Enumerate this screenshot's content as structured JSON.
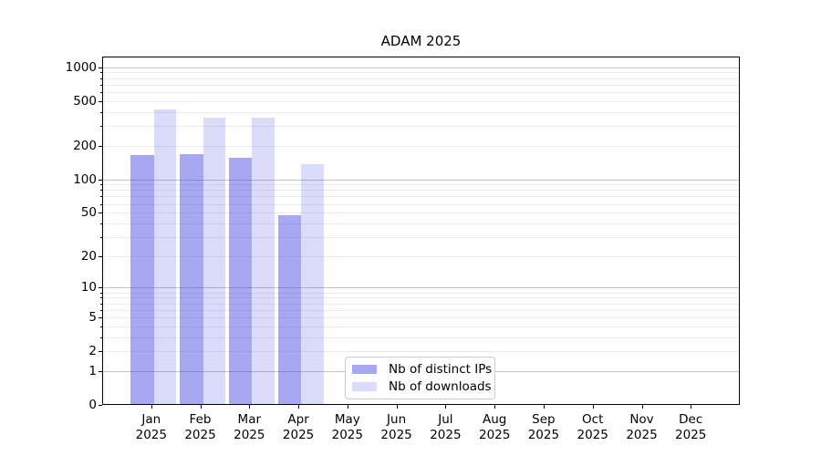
{
  "chart_data": {
    "type": "bar",
    "title": "ADAM 2025",
    "categories": [
      "Jan",
      "Feb",
      "Mar",
      "Apr",
      "May",
      "Jun",
      "Jul",
      "Aug",
      "Sep",
      "Oct",
      "Nov",
      "Dec"
    ],
    "year_label": "2025",
    "series": [
      {
        "name": "Nb of distinct IPs",
        "color": "rgba(62,62,226,0.45)",
        "values": [
          165,
          169,
          156,
          47,
          0,
          0,
          0,
          0,
          0,
          0,
          0,
          0
        ]
      },
      {
        "name": "Nb of downloads",
        "color": "rgba(62,62,226,0.19)",
        "values": [
          420,
          353,
          353,
          136,
          0,
          0,
          0,
          0,
          0,
          0,
          0,
          0
        ]
      }
    ],
    "xlabel": "",
    "ylabel": "",
    "yscale": "log1p",
    "ylim": [
      0,
      1240
    ],
    "yticks": [
      0,
      1,
      2,
      5,
      10,
      20,
      50,
      100,
      200,
      500,
      1000
    ],
    "major_gridlines": [
      1,
      10,
      100,
      1000
    ],
    "minor_gridlines": [
      2,
      3,
      4,
      5,
      6,
      7,
      8,
      9,
      20,
      30,
      40,
      50,
      60,
      70,
      80,
      90,
      200,
      300,
      400,
      500,
      600,
      700,
      800,
      900
    ],
    "grid": true,
    "legend_position": "inside-bottom-center-left",
    "colors": {
      "major_grid": "#c3c3c3",
      "minor_grid": "#ebebeb",
      "axis": "#000000",
      "bar_distinct_ips": "#a8a8f2",
      "bar_downloads": "#dbdbfa"
    }
  }
}
